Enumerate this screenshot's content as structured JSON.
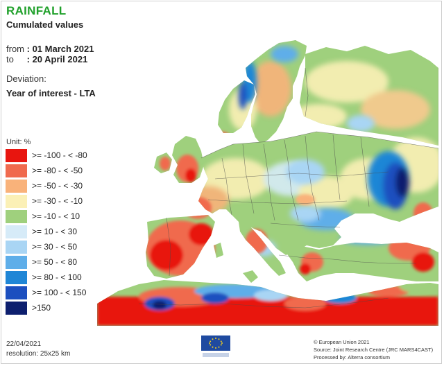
{
  "header": {
    "title": "RAINFALL",
    "subtitle": "Cumulated values"
  },
  "period": {
    "from_label": "from",
    "from_value": ": 01 March 2021",
    "to_label": "to",
    "to_value": ": 20 April 2021"
  },
  "deviation": {
    "label": "Deviation:",
    "value": "Year of interest - LTA"
  },
  "legend": {
    "unit": "Unit:  %",
    "items": [
      {
        "label": ">= -100 - < -80",
        "color": "#e8150f"
      },
      {
        "label": ">= -80 - < -50",
        "color": "#f06a4e"
      },
      {
        "label": ">= -50 - < -30",
        "color": "#f9b27a"
      },
      {
        "label": ">= -30 - < -10",
        "color": "#fbf0b6"
      },
      {
        "label": ">= -10 - < 10",
        "color": "#9fd07d"
      },
      {
        "label": ">= 10 - < 30",
        "color": "#d6ebf8"
      },
      {
        "label": ">= 30 - < 50",
        "color": "#a9d5f4"
      },
      {
        "label": ">= 50 - < 80",
        "color": "#5eaee9"
      },
      {
        "label": ">= 80 - < 100",
        "color": "#1f86d6"
      },
      {
        "label": ">= 100 - < 150",
        "color": "#1c4fbf"
      },
      {
        "label": ">150",
        "color": "#0d1f6e"
      }
    ]
  },
  "footer": {
    "date": "22/04/2021",
    "resolution": "resolution: 25x25 km",
    "copyright": "© European Union 2021",
    "source": "Source: Joint Research Centre (JRC MARS4CAST)",
    "processed": "Processed by: Alterra consortium",
    "logo_text": "European Commission"
  }
}
